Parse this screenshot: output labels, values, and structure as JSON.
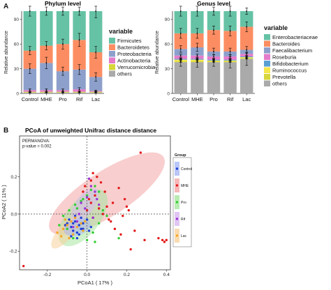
{
  "panel_labels": [
    "A",
    "B"
  ],
  "chart_data": [
    {
      "type": "bar",
      "stacked": true,
      "title": "Phylum level",
      "ylabel": "Relative abundance",
      "ylim": [
        0,
        100
      ],
      "yticks": [
        0,
        30,
        60,
        90
      ],
      "categories": [
        "Control",
        "MHE",
        "Pro",
        "Rif",
        "Lac"
      ],
      "legend_title": "variable",
      "legend_position": "right",
      "series": [
        {
          "name": "others",
          "color": "#AAAAAA",
          "values": [
            1.0,
            1.0,
            1.0,
            1.0,
            1.0
          ]
        },
        {
          "name": "Verrucomicrobia",
          "color": "#D7D63B",
          "values": [
            1.0,
            1.0,
            1.0,
            1.0,
            1.0
          ]
        },
        {
          "name": "Actinobacteria",
          "color": "#E57BCB",
          "values": [
            2.0,
            2.0,
            2.0,
            3.0,
            1.0
          ]
        },
        {
          "name": "Proteobacteria",
          "color": "#8DA0CB",
          "values": [
            26,
            33,
            23,
            24,
            17
          ]
        },
        {
          "name": "Bacteroidetes",
          "color": "#FC8D62",
          "values": [
            22,
            21,
            33,
            36,
            30
          ]
        },
        {
          "name": "Firmicutes",
          "color": "#66C2A5",
          "values": [
            48,
            42,
            40,
            35,
            50
          ]
        }
      ],
      "error_tops": [
        [
          1,
          1,
          1,
          1,
          1
        ],
        [
          2,
          2,
          2,
          2,
          2
        ],
        [
          4,
          4,
          4,
          5,
          3
        ],
        [
          30,
          37,
          27,
          29,
          20
        ],
        [
          52,
          58,
          60,
          65,
          50
        ],
        [
          100,
          100,
          100,
          100,
          100
        ]
      ],
      "error_half": [
        [
          0.5,
          0.5,
          0.5,
          0.5,
          0.5
        ],
        [
          0.5,
          0.5,
          0.5,
          0.5,
          0.5
        ],
        [
          1.5,
          1.5,
          1.5,
          2,
          1
        ],
        [
          6,
          7,
          5,
          6,
          5
        ],
        [
          5,
          5,
          6,
          8,
          7
        ],
        [
          6,
          5,
          5,
          5,
          8
        ]
      ]
    },
    {
      "type": "bar",
      "stacked": true,
      "title": "Genus level",
      "ylabel": "Relative abundance",
      "ylim": [
        0,
        100
      ],
      "yticks": [
        0,
        30,
        60,
        90
      ],
      "categories": [
        "Control",
        "MHE",
        "Pro",
        "Rif",
        "Lac"
      ],
      "legend_title": "variable",
      "legend_position": "right",
      "series": [
        {
          "name": "others",
          "color": "#AAAAAA",
          "values": [
            38,
            38,
            38,
            38,
            42
          ]
        },
        {
          "name": "Prevotella",
          "color": "#D7D63B",
          "values": [
            1,
            1,
            1,
            1,
            1
          ]
        },
        {
          "name": "Ruminococcus",
          "color": "#F7E64B",
          "values": [
            2,
            2,
            1,
            1,
            1
          ]
        },
        {
          "name": "Bifidobacterium",
          "color": "#5A9FD4",
          "values": [
            1,
            1,
            1,
            1,
            1
          ]
        },
        {
          "name": "Roseburia",
          "color": "#E57BCB",
          "values": [
            4,
            4,
            4,
            4,
            3
          ]
        },
        {
          "name": "Faecalibacterium",
          "color": "#8DA0CB",
          "values": [
            8,
            10,
            6,
            6,
            5
          ]
        },
        {
          "name": "Bacteroides",
          "color": "#FC8D62",
          "values": [
            19,
            17,
            26,
            25,
            28
          ]
        },
        {
          "name": "Enterobacteriaceae",
          "color": "#66C2A5",
          "values": [
            27,
            27,
            23,
            24,
            19
          ]
        }
      ],
      "error_tops": [
        [
          38,
          38,
          38,
          38,
          42
        ],
        [
          39,
          39,
          39,
          39,
          43
        ],
        [
          41,
          41,
          40,
          40,
          44
        ],
        [
          42,
          42,
          41,
          41,
          45
        ],
        [
          46,
          46,
          45,
          45,
          48
        ],
        [
          54,
          56,
          51,
          51,
          53
        ],
        [
          73,
          73,
          77,
          76,
          81
        ],
        [
          100,
          100,
          100,
          100,
          100
        ]
      ],
      "error_half": [
        [
          5,
          6,
          5,
          7,
          8
        ],
        [
          1,
          1,
          1,
          1,
          1
        ],
        [
          1,
          1,
          1,
          1,
          1
        ],
        [
          1,
          1,
          1,
          1,
          1
        ],
        [
          2,
          2,
          2,
          2,
          2
        ],
        [
          4,
          5,
          4,
          4,
          4
        ],
        [
          6,
          6,
          5,
          6,
          6
        ],
        [
          6,
          6,
          5,
          6,
          4
        ]
      ]
    },
    {
      "type": "scatter",
      "title": "PCoA of unweighted Unifrac distance distance",
      "xlabel": "PCoA1 ( 17% )",
      "ylabel": "PCoA2 ( 11% )",
      "xlim": [
        -0.34,
        0.42
      ],
      "ylim": [
        -0.3,
        0.42
      ],
      "xticks": [
        -0.2,
        0.0,
        0.2,
        0.4
      ],
      "yticks": [
        -0.2,
        0.0,
        0.2
      ],
      "annotation": [
        "PERMANOVA:",
        "p-value = 0.002"
      ],
      "legend_title": "Group",
      "legend_position": "right",
      "reference_lines": {
        "x": 0,
        "y": 0
      },
      "series": [
        {
          "name": "Control",
          "color": "#1F3FD6",
          "x": [
            -0.1,
            -0.08,
            -0.06,
            -0.04,
            -0.02,
            0.0,
            -0.05,
            -0.07,
            -0.03,
            -0.09,
            -0.11,
            0.01,
            -0.06,
            -0.04,
            -0.08,
            -0.02,
            0.02,
            -0.05,
            -0.03,
            -0.07
          ],
          "y": [
            -0.05,
            -0.07,
            -0.04,
            -0.06,
            -0.08,
            -0.03,
            -0.1,
            -0.09,
            -0.02,
            -0.03,
            -0.06,
            -0.09,
            -0.01,
            -0.11,
            -0.12,
            -0.05,
            -0.07,
            -0.13,
            -0.08,
            -0.05
          ]
        },
        {
          "name": "MHE",
          "color": "#E31A1C",
          "x": [
            0.27,
            0.16,
            0.19,
            0.21,
            0.13,
            0.09,
            0.04,
            0.02,
            0.0,
            -0.01,
            0.03,
            0.05,
            0.07,
            0.11,
            0.14,
            0.17,
            0.24,
            0.29,
            0.36,
            0.38,
            0.39,
            0.4,
            0.2,
            0.22,
            0.06,
            0.01,
            -0.02,
            0.08,
            0.1,
            0.03,
            -0.32,
            0.12,
            0.18,
            0.02
          ],
          "y": [
            0.33,
            0.14,
            0.08,
            0.02,
            0.06,
            0.12,
            0.1,
            0.06,
            0.02,
            0.15,
            0.22,
            0.2,
            0.17,
            -0.03,
            -0.08,
            -0.11,
            -0.09,
            -0.14,
            -0.13,
            -0.14,
            -0.15,
            -0.14,
            0.04,
            -0.19,
            0.03,
            0.08,
            0.12,
            0.0,
            0.04,
            -0.02,
            -0.28,
            -0.04,
            -0.01,
            0.18
          ]
        },
        {
          "name": "Pro",
          "color": "#33CC33",
          "x": [
            -0.12,
            -0.09,
            -0.06,
            -0.03,
            0.0,
            0.02,
            0.04,
            0.06,
            -0.14,
            -0.1,
            0.08,
            0.1,
            0.06,
            -0.02,
            0.03,
            -0.07,
            0.0,
            0.04,
            0.16,
            -0.05
          ],
          "y": [
            -0.01,
            0.02,
            0.05,
            0.07,
            0.1,
            0.13,
            0.15,
            0.12,
            -0.06,
            -0.08,
            0.02,
            -0.01,
            -0.05,
            0.08,
            -0.1,
            -0.13,
            -0.14,
            -0.15,
            -0.13,
            0.03
          ]
        },
        {
          "name": "Rif",
          "color": "#9B30D9",
          "x": [
            -0.03,
            0.0,
            0.02,
            0.01,
            -0.01,
            0.03,
            0.05,
            -0.05,
            -0.07,
            -0.04,
            0.04,
            0.06
          ],
          "y": [
            0.06,
            0.09,
            0.15,
            0.19,
            0.03,
            -0.02,
            0.08,
            -0.04,
            -0.07,
            0.0,
            0.12,
            0.05
          ]
        },
        {
          "name": "Lac",
          "color": "#F5A623",
          "x": [
            -0.15,
            -0.12,
            -0.1,
            -0.08,
            -0.06,
            -0.05,
            -0.03,
            -0.02,
            -0.11,
            -0.13,
            -0.07,
            -0.01,
            -0.09
          ],
          "y": [
            -0.1,
            -0.08,
            -0.06,
            -0.04,
            -0.02,
            -0.07,
            -0.05,
            -0.09,
            -0.03,
            -0.12,
            -0.11,
            -0.04,
            -0.13
          ]
        }
      ]
    }
  ]
}
